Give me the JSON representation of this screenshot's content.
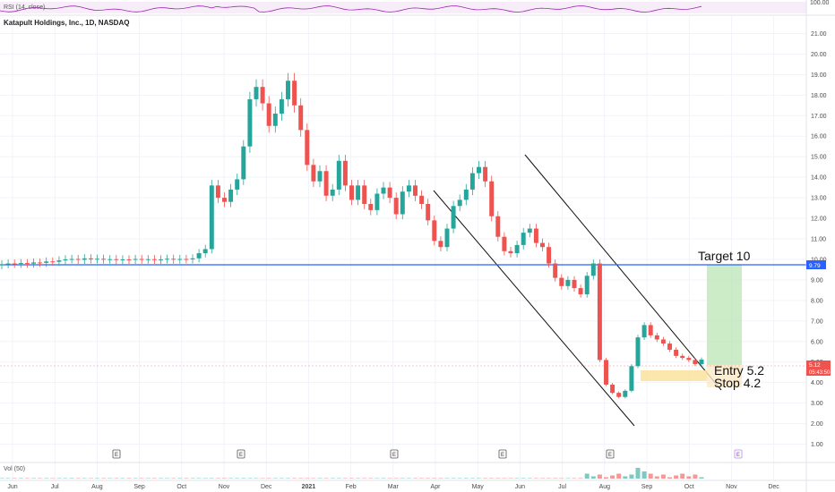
{
  "header": {
    "rsi_label": "RSI (14, close)",
    "symbol_title": "Katapult Holdings, Inc., 1D, NASDAQ",
    "volume_label": "Vol (50)"
  },
  "colors": {
    "up": "#26a69a",
    "down": "#ef5350",
    "target_line": "#2962ff",
    "rsi": "#9c27b0",
    "channel": "#000000",
    "target_zone": "#b7e4b1",
    "stop_zone": "#fbe3a3"
  },
  "chart_data": {
    "type": "candlestick",
    "title": "Katapult Holdings, Inc., 1D, NASDAQ",
    "y_ticks": [
      "1.00",
      "2.00",
      "3.00",
      "4.00",
      "5.00",
      "6.00",
      "7.00",
      "8.00",
      "9.00",
      "10.00",
      "11.00",
      "12.00",
      "13.00",
      "14.00",
      "15.00",
      "16.00",
      "17.00",
      "18.00",
      "19.00",
      "20.00",
      "21.00"
    ],
    "ylim": [
      0.5,
      21.5
    ],
    "x_ticks": [
      "Jun",
      "Jul",
      "Aug",
      "Sep",
      "Oct",
      "Nov",
      "Dec",
      "2021",
      "Feb",
      "Mar",
      "Apr",
      "May",
      "Jun",
      "Jul",
      "Aug",
      "Sep",
      "Oct",
      "Nov",
      "Dec"
    ],
    "series_close": [
      9.76,
      9.8,
      9.78,
      9.82,
      9.79,
      9.85,
      9.83,
      9.9,
      9.88,
      9.95,
      10.0,
      10.02,
      9.98,
      10.05,
      10.0,
      10.03,
      9.99,
      10.01,
      9.97,
      10.0,
      9.98,
      10.02,
      9.99,
      10.01,
      9.98,
      10.0,
      10.03,
      9.99,
      10.02,
      10.0,
      10.05,
      10.3,
      10.5,
      13.6,
      13.0,
      12.8,
      13.4,
      13.9,
      15.5,
      17.8,
      18.4,
      17.6,
      16.5,
      17.1,
      17.8,
      18.7,
      17.5,
      16.3,
      14.6,
      13.8,
      14.3,
      13.1,
      13.4,
      14.8,
      13.6,
      12.9,
      13.6,
      12.7,
      12.4,
      13.2,
      13.5,
      13.0,
      12.2,
      13.3,
      13.6,
      13.1,
      12.7,
      11.9,
      10.9,
      10.6,
      11.5,
      12.6,
      12.9,
      13.4,
      14.2,
      14.5,
      13.8,
      12.1,
      11.1,
      10.4,
      10.3,
      10.7,
      11.3,
      11.5,
      10.8,
      10.6,
      9.8,
      9.1,
      8.7,
      9.0,
      8.6,
      8.3,
      9.2,
      9.8,
      5.1,
      3.9,
      3.5,
      3.3,
      3.6,
      4.8,
      6.2,
      6.8,
      6.3,
      6.1,
      5.9,
      5.6,
      5.3,
      5.2,
      5.1,
      4.9,
      5.12
    ],
    "key_levels": {
      "target_line": 9.79,
      "last_price": 5.12
    },
    "price_labels": {
      "target_line": "9.79",
      "last_price": "5.12",
      "countdown": "05:43:50"
    },
    "annotations": {
      "target": "Target 10",
      "entry": "Entry 5.2",
      "stop": "Stop 4.2"
    },
    "earnings_markers": [
      "E",
      "E",
      "E",
      "E",
      "E",
      "E"
    ],
    "grid": true,
    "legend": "none"
  }
}
